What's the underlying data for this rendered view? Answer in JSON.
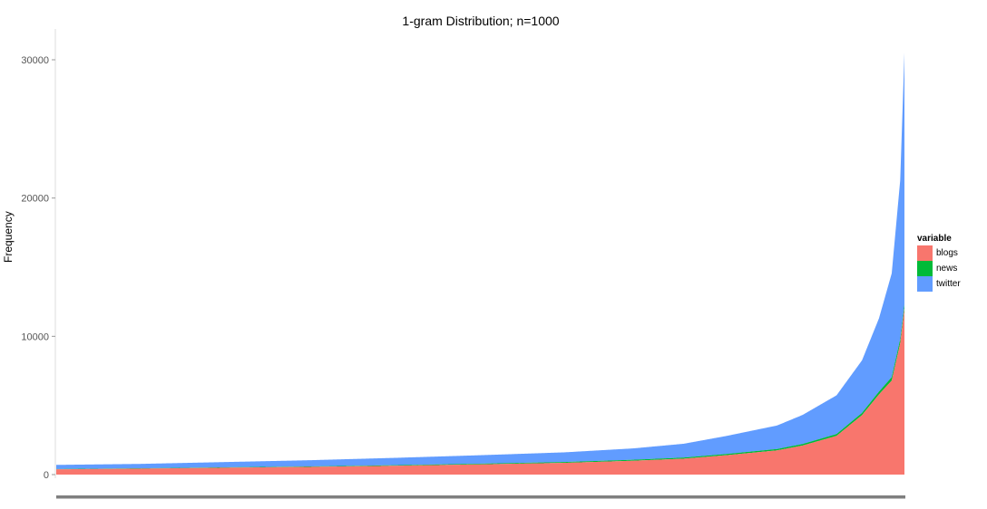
{
  "chart_data": {
    "type": "area",
    "title": "1-gram Distribution; n=1000",
    "xlabel": "",
    "ylabel": "Frequency",
    "ylim": [
      -200,
      32300
    ],
    "yticks": [
      0,
      10000,
      20000,
      30000
    ],
    "x_count": 1000,
    "stacked": true,
    "grid": false,
    "legend_position": "right",
    "legend_title": "variable",
    "series": [
      {
        "name": "blogs",
        "color": "#F8766D",
        "points": [
          [
            1,
            380
          ],
          [
            100,
            430
          ],
          [
            200,
            500
          ],
          [
            300,
            560
          ],
          [
            400,
            640
          ],
          [
            500,
            740
          ],
          [
            600,
            850
          ],
          [
            680,
            1000
          ],
          [
            740,
            1150
          ],
          [
            790,
            1400
          ],
          [
            850,
            1750
          ],
          [
            880,
            2100
          ],
          [
            920,
            2800
          ],
          [
            950,
            4300
          ],
          [
            970,
            5800
          ],
          [
            985,
            6800
          ],
          [
            995,
            9500
          ],
          [
            1000,
            12000
          ]
        ]
      },
      {
        "name": "news",
        "color": "#00BA38",
        "points": [
          [
            1,
            20
          ],
          [
            300,
            30
          ],
          [
            600,
            60
          ],
          [
            740,
            80
          ],
          [
            850,
            100
          ],
          [
            920,
            130
          ],
          [
            950,
            160
          ],
          [
            970,
            200
          ],
          [
            985,
            250
          ],
          [
            1000,
            300
          ]
        ]
      },
      {
        "name": "twitter",
        "color": "#619CFF",
        "points": [
          [
            1,
            300
          ],
          [
            100,
            320
          ],
          [
            200,
            380
          ],
          [
            300,
            450
          ],
          [
            400,
            530
          ],
          [
            500,
            610
          ],
          [
            600,
            700
          ],
          [
            680,
            820
          ],
          [
            740,
            1000
          ],
          [
            790,
            1300
          ],
          [
            850,
            1700
          ],
          [
            880,
            2100
          ],
          [
            920,
            2800
          ],
          [
            950,
            3800
          ],
          [
            970,
            5300
          ],
          [
            985,
            7500
          ],
          [
            995,
            11500
          ],
          [
            1000,
            18200
          ]
        ]
      }
    ]
  }
}
